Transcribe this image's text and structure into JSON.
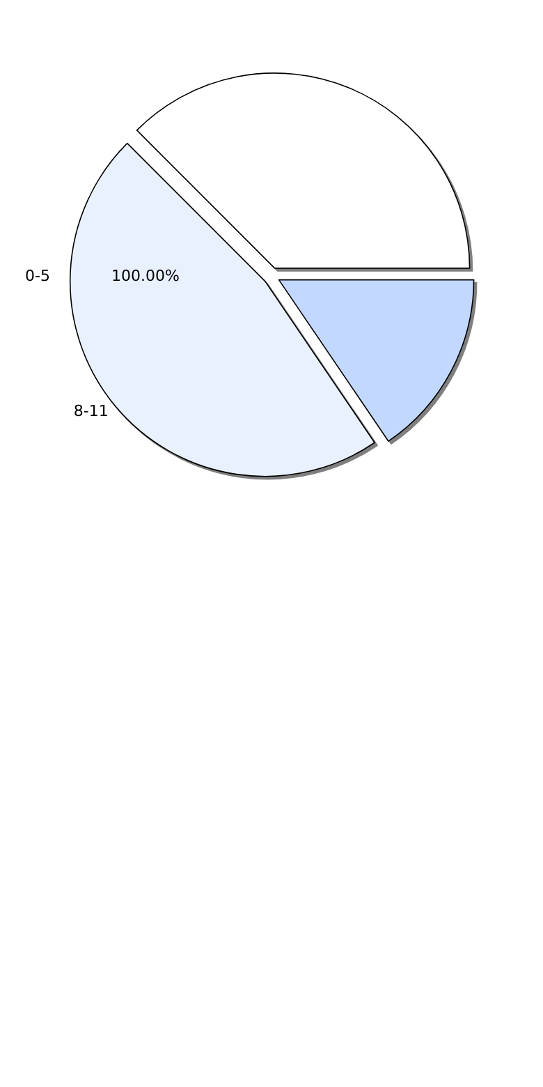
{
  "chart_data": {
    "type": "pie",
    "categories": [
      null,
      "8-11",
      null
    ],
    "values": [
      37.5,
      47,
      15.5
    ],
    "colors": [
      "#ffffff",
      "#eaf1fe",
      "#c3d8fe"
    ],
    "annotations": [
      "0-5",
      "100.00%"
    ]
  }
}
